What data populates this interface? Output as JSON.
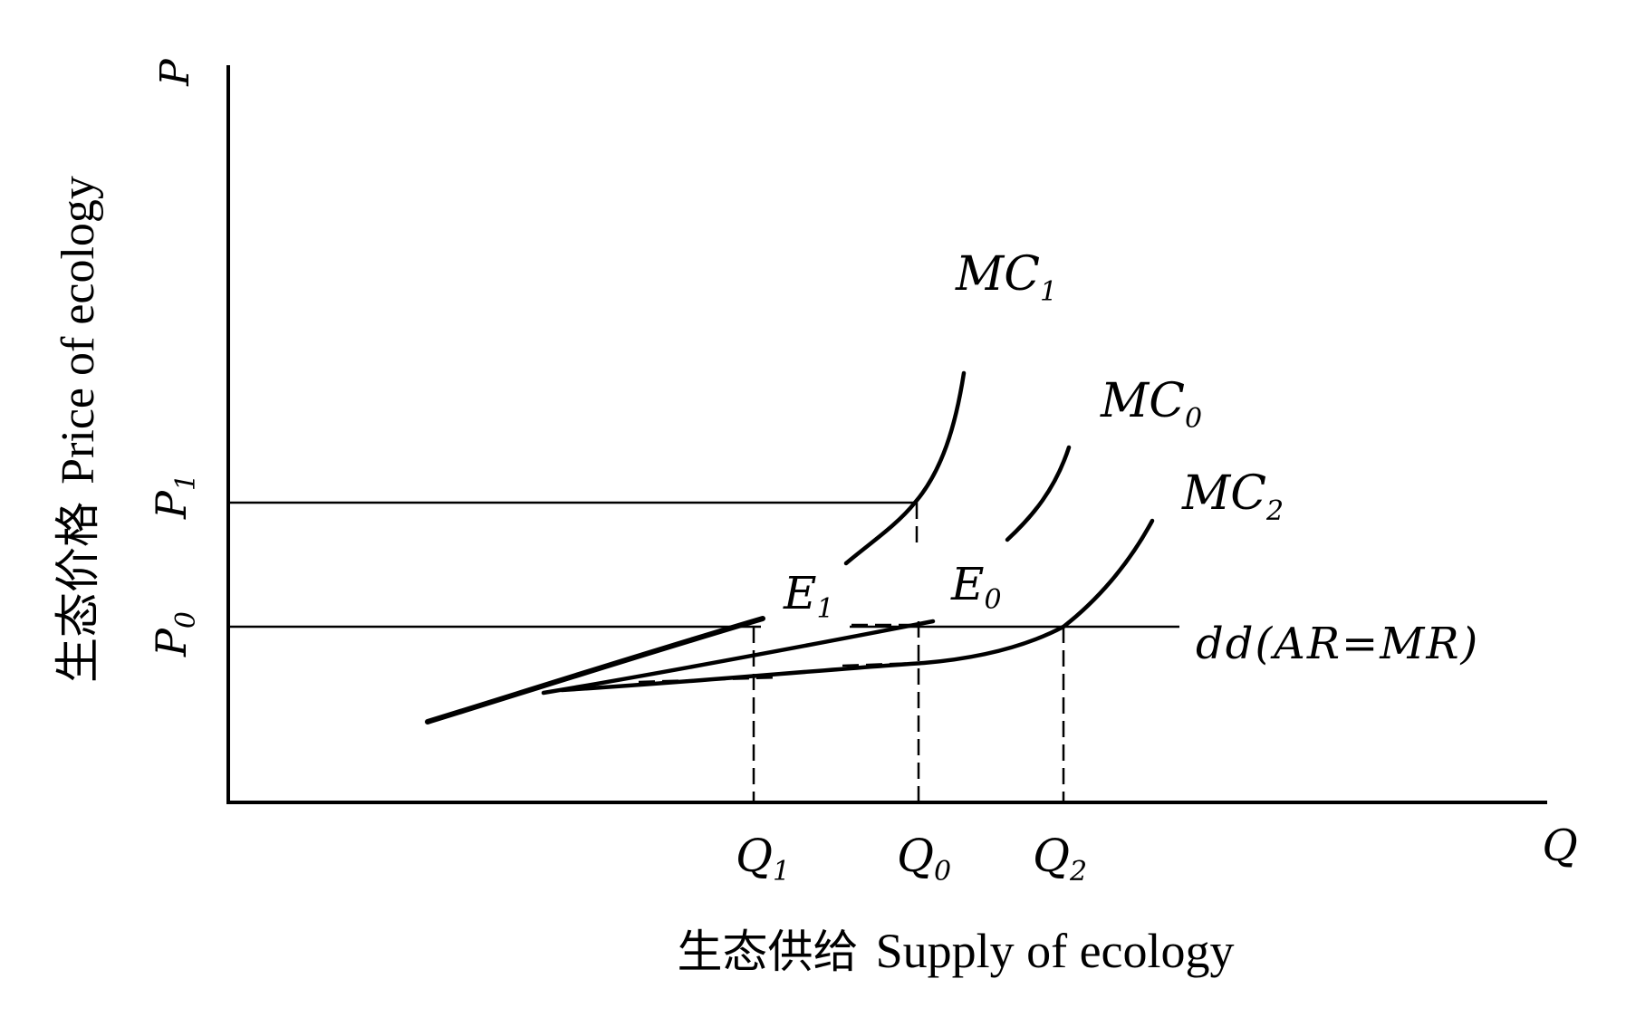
{
  "diagram": {
    "y_axis_symbol": "P",
    "x_axis_symbol": "Q",
    "y_axis_caption": {
      "zh": "生态价格",
      "en": "Price of ecology"
    },
    "x_axis_caption": {
      "zh": "生态供给",
      "en": "Supply of ecology"
    },
    "price_levels": [
      {
        "base": "P",
        "sub": "1"
      },
      {
        "base": "P",
        "sub": "0"
      }
    ],
    "quantity_levels": [
      {
        "base": "Q",
        "sub": "1"
      },
      {
        "base": "Q",
        "sub": "0"
      },
      {
        "base": "Q",
        "sub": "2"
      }
    ],
    "curves": [
      {
        "base": "MC",
        "sub": "1"
      },
      {
        "base": "MC",
        "sub": "0"
      },
      {
        "base": "MC",
        "sub": "2"
      }
    ],
    "equilibria": [
      {
        "base": "E",
        "sub": "1"
      },
      {
        "base": "E",
        "sub": "0"
      }
    ],
    "demand_line": {
      "label": "dd(AR=MR)"
    }
  }
}
